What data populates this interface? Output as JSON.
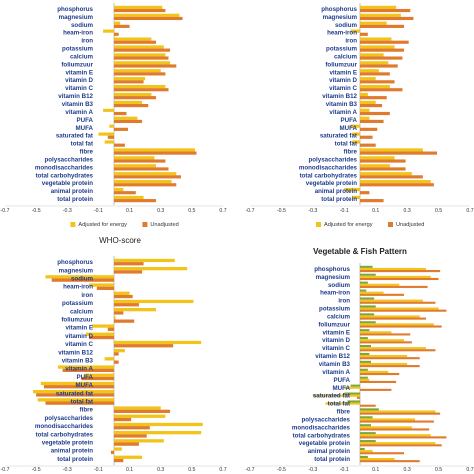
{
  "nutrients": [
    "phosphorus",
    "magnesium",
    "sodium",
    "heam-iron",
    "iron",
    "potassium",
    "calcium",
    "foliumzuur",
    "vitamin E",
    "vitamin D",
    "vitamin C",
    "vitamin B12",
    "vitamin B3",
    "vitamin A",
    "PUFA",
    "MUFA",
    "saturated fat",
    "total fat",
    "fibre",
    "polysaccharides",
    "monodisaccharides",
    "total carbohydrates",
    "vegetable protein",
    "animal protein",
    "total protein"
  ],
  "legend": {
    "adjusted": "Adjusted for energy",
    "unadjusted": "Unadjusted"
  },
  "colors": {
    "adjusted": "#f2c31a",
    "unadjusted": "#e07b2e",
    "green": "#7aa63c",
    "axis": "#999999",
    "label": "#1f3b8c"
  },
  "chart_data": [
    {
      "type": "bar",
      "orientation": "horizontal",
      "title": "",
      "xlim": [
        -0.7,
        0.7
      ],
      "xticks": [
        "-0.7",
        "-0.5",
        "-0.3",
        "-0.1",
        "0.1",
        "0.3",
        "0.5",
        "0.7"
      ],
      "series": [
        {
          "name": "Adjusted for energy",
          "values": [
            0.31,
            0.42,
            0.04,
            -0.07,
            0.24,
            0.32,
            0.33,
            0.36,
            0.3,
            0.2,
            0.33,
            0.24,
            0.18,
            -0.07,
            0.15,
            -0.03,
            -0.1,
            -0.06,
            0.52,
            0.26,
            0.27,
            0.4,
            0.37,
            0.06,
            0.19
          ]
        },
        {
          "name": "Unadjusted",
          "values": [
            0.33,
            0.44,
            0.1,
            0.03,
            0.27,
            0.36,
            0.35,
            0.4,
            0.33,
            0.19,
            0.35,
            0.27,
            0.22,
            0.08,
            0.18,
            0.09,
            -0.04,
            0.07,
            0.53,
            0.33,
            0.35,
            0.43,
            0.4,
            0.14,
            0.27
          ]
        }
      ]
    },
    {
      "type": "bar",
      "orientation": "horizontal",
      "title": "",
      "xlim": [
        -0.7,
        0.7
      ],
      "xticks": [
        "-0.7",
        "-0.5",
        "-0.3",
        "-0.1",
        "0.1",
        "0.3",
        "0.5",
        "0.7"
      ],
      "series": [
        {
          "name": "Adjusted for energy",
          "values": [
            0.23,
            0.26,
            0.17,
            -0.06,
            0.2,
            0.22,
            0.15,
            0.18,
            0.12,
            0.1,
            0.19,
            0.05,
            0.1,
            0.06,
            0.06,
            -0.06,
            -0.05,
            -0.05,
            0.4,
            0.22,
            0.19,
            0.33,
            0.45,
            -0.1,
            -0.05
          ]
        },
        {
          "name": "Unadjusted",
          "values": [
            0.32,
            0.34,
            0.28,
            0.05,
            0.31,
            0.28,
            0.27,
            0.24,
            0.19,
            0.22,
            0.27,
            0.17,
            0.14,
            0.19,
            0.15,
            0.11,
            0.08,
            0.1,
            0.49,
            0.29,
            0.29,
            0.4,
            0.47,
            0.06,
            0.15
          ]
        }
      ]
    },
    {
      "type": "bar",
      "orientation": "horizontal",
      "title": "WHO-score",
      "xlim": [
        -0.7,
        0.7
      ],
      "xticks": [
        "-0.7",
        "-0.5",
        "-0.3",
        "-0.1",
        "0.1",
        "0.3",
        "0.5",
        "0.7"
      ],
      "series": [
        {
          "name": "Adjusted for energy",
          "values": [
            0.39,
            0.47,
            -0.44,
            -0.16,
            0.1,
            0.51,
            0.27,
            0.01,
            -0.14,
            -0.18,
            0.56,
            0.07,
            -0.06,
            -0.36,
            -0.19,
            -0.47,
            -0.52,
            -0.49,
            0.3,
            0.33,
            0.57,
            0.56,
            0.32,
            0.05,
            0.18
          ]
        },
        {
          "name": "Unadjusted",
          "values": [
            0.19,
            0.18,
            -0.4,
            -0.11,
            0.12,
            0.16,
            0.06,
            0.13,
            -0.04,
            -0.16,
            0.38,
            0.03,
            0.03,
            -0.33,
            -0.21,
            -0.45,
            -0.5,
            -0.44,
            0.36,
            0.11,
            0.23,
            0.21,
            0.16,
            -0.02,
            0.06
          ]
        }
      ]
    },
    {
      "type": "bar",
      "orientation": "horizontal",
      "title": "Vegetable & Fish Pattern",
      "xlim": [
        -0.7,
        0.7
      ],
      "xticks": [
        "-0.7",
        "-0.5",
        "-0.3",
        "-0.1",
        "0.1",
        "0.3",
        "0.5",
        "0.7"
      ],
      "series": [
        {
          "name": "",
          "values": [
            0.08,
            0.1,
            0.05,
            0.04,
            0.09,
            0.1,
            0.09,
            0.1,
            0.06,
            0.05,
            0.07,
            0.06,
            0.07,
            0.05,
            0.05,
            -0.06,
            -0.1,
            -0.08,
            0.12,
            0.08,
            0.07,
            0.1,
            0.1,
            0.03,
            0.05
          ]
        },
        {
          "name": "",
          "values": [
            0.42,
            0.45,
            0.25,
            0.15,
            0.4,
            0.5,
            0.38,
            0.47,
            0.2,
            0.28,
            0.42,
            0.3,
            0.3,
            0.18,
            0.06,
            -0.1,
            -0.3,
            -0.22,
            0.48,
            0.35,
            0.33,
            0.45,
            0.48,
            0.08,
            0.22
          ]
        },
        {
          "name": "",
          "values": [
            0.51,
            0.5,
            0.43,
            0.28,
            0.48,
            0.55,
            0.42,
            0.52,
            0.32,
            0.33,
            0.48,
            0.38,
            0.38,
            0.25,
            0.23,
            0.2,
            -0.02,
            0.1,
            0.51,
            0.47,
            0.44,
            0.55,
            0.52,
            0.28,
            0.38
          ]
        }
      ]
    }
  ]
}
